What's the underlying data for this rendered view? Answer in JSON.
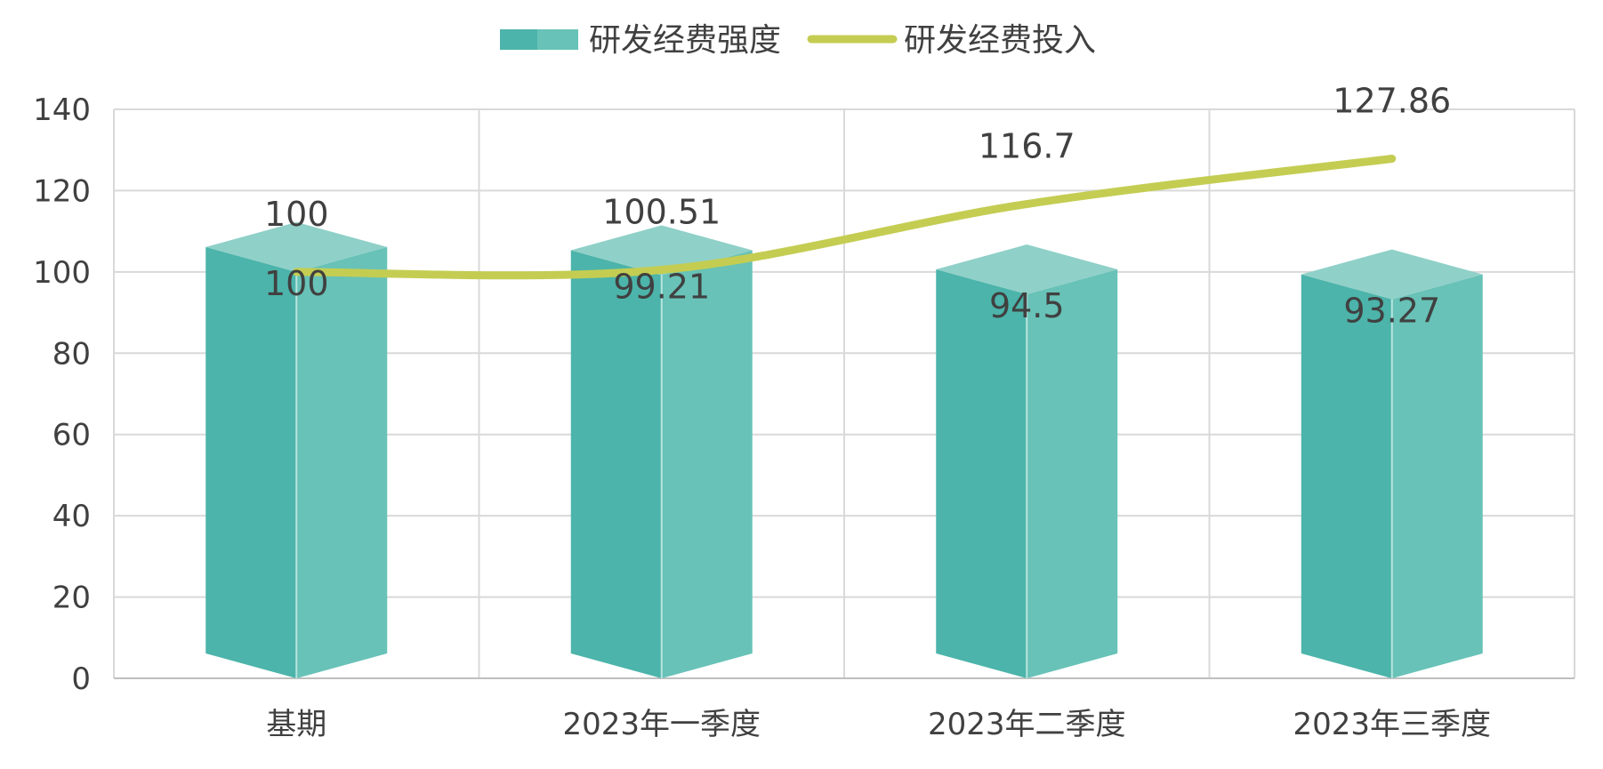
{
  "chart_data": {
    "type": "bar",
    "categories": [
      "基期",
      "2023年一季度",
      "2023年二季度",
      "2023年三季度"
    ],
    "series": [
      {
        "name": "研发经费强度",
        "type": "bar",
        "values": [
          100,
          99.21,
          94.5,
          93.27
        ],
        "color": "#4CB4AA",
        "color_light": "#68C2B7",
        "color_top": "#8FD0C8"
      },
      {
        "name": "研发经费投入",
        "type": "line",
        "values": [
          100,
          100.51,
          116.7,
          127.86
        ],
        "color": "#C4CD52"
      }
    ],
    "y_ticks": [
      "0",
      "20",
      "40",
      "60",
      "80",
      "100",
      "120",
      "140"
    ],
    "ylim": [
      0,
      140
    ],
    "grid": true,
    "legend_position": "top-center",
    "bar_labels": [
      "100",
      "99.21",
      "94.5",
      "93.27"
    ],
    "line_labels": [
      "100",
      "100.51",
      "116.7",
      "127.86"
    ],
    "title": "",
    "xlabel": "",
    "ylabel": ""
  }
}
